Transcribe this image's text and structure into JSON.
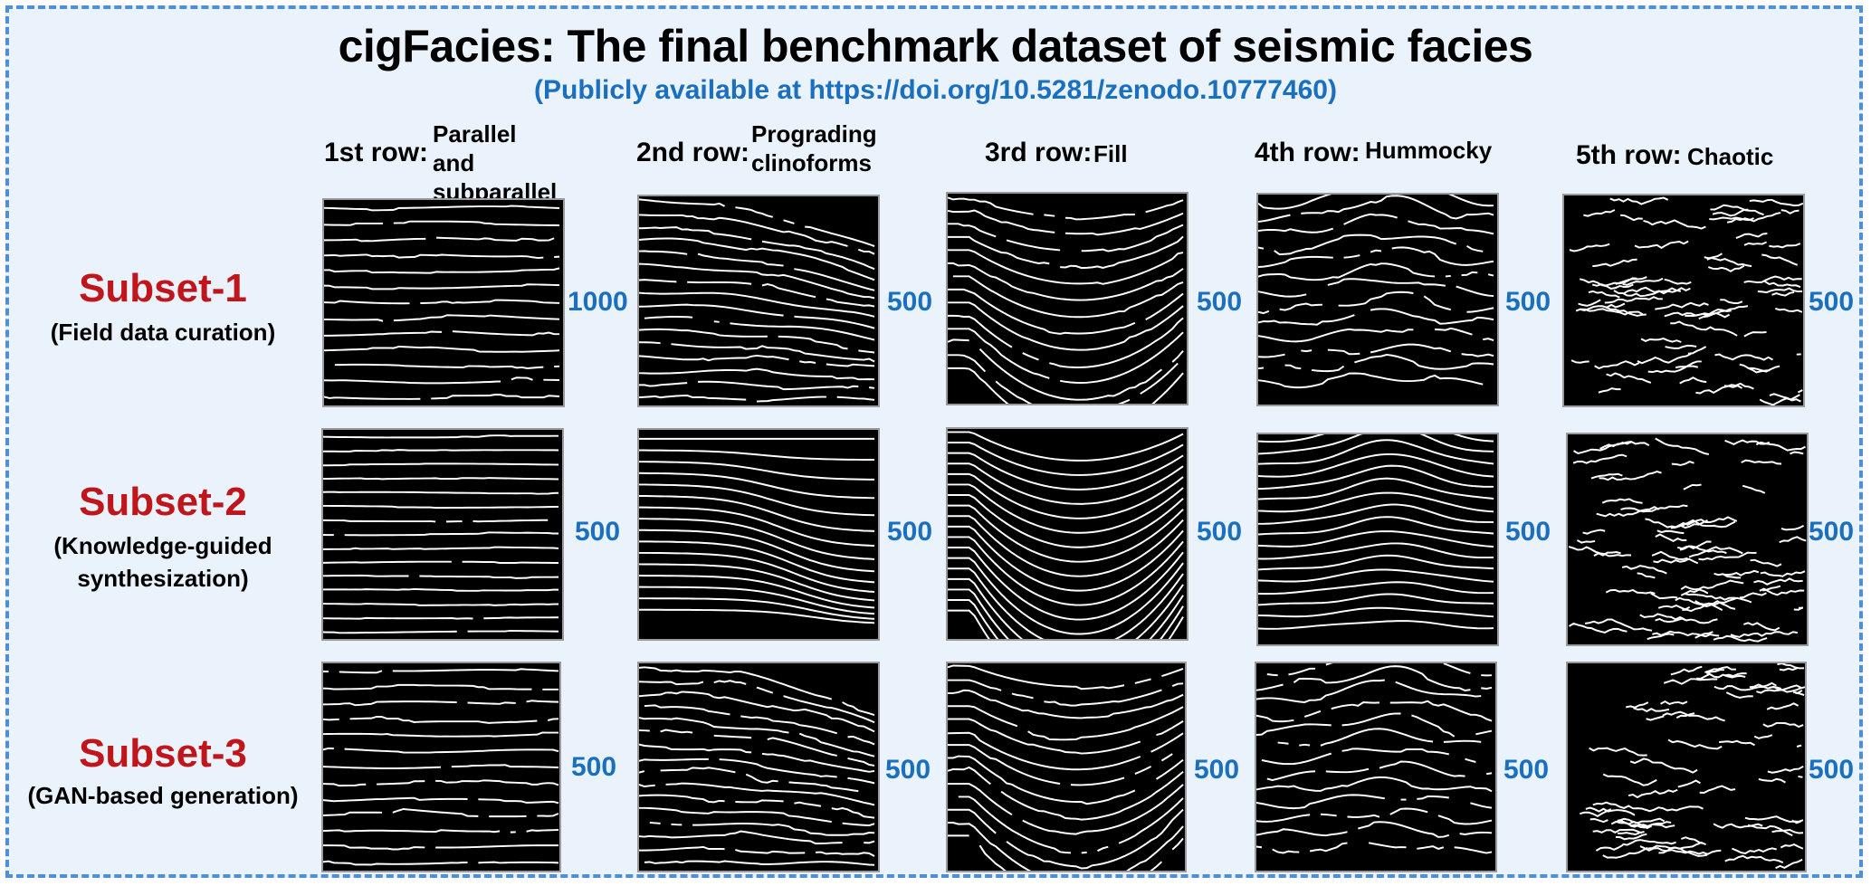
{
  "title": "cigFacies: The final benchmark dataset of seismic facies",
  "subtitle": "(Publicly available at https://doi.org/10.5281/zenodo.10777460)",
  "columns": [
    {
      "row_tag": "1st row:",
      "facies": "Parallel and\nsubparallel"
    },
    {
      "row_tag": "2nd row:",
      "facies": "Prograding\nclinoforms"
    },
    {
      "row_tag": "3rd row:",
      "facies": "Fill"
    },
    {
      "row_tag": "4th row:",
      "facies": "Hummocky"
    },
    {
      "row_tag": "5th row:",
      "facies": "Chaotic"
    }
  ],
  "subsets": [
    {
      "name": "Subset-1",
      "description": "(Field data curation)",
      "counts": [
        "1000",
        "500",
        "500",
        "500",
        "500"
      ]
    },
    {
      "name": "Subset-2",
      "description": "(Knowledge-guided\nsynthesization)",
      "counts": [
        "500",
        "500",
        "500",
        "500",
        "500"
      ]
    },
    {
      "name": "Subset-3",
      "description": "(GAN-based generation)",
      "counts": [
        "500",
        "500",
        "500",
        "500",
        "500"
      ]
    }
  ],
  "colors": {
    "frame_border": "#4f8fd6",
    "frame_fill": "#eaf3fb",
    "subset_name": "#c0151b",
    "count": "#1a6fbf",
    "panel_bg": "#000000",
    "panel_lines": "#ffffff"
  }
}
